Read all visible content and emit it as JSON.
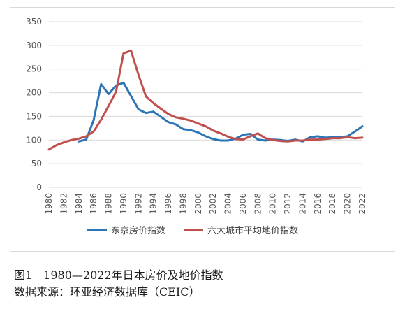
{
  "chart_data": {
    "type": "line",
    "title": "",
    "xlabel": "",
    "ylabel": "",
    "ylim": [
      0,
      350
    ],
    "yticks": [
      0,
      50,
      100,
      150,
      200,
      250,
      300,
      350
    ],
    "xlim": [
      1980,
      2022
    ],
    "xticks": [
      1980,
      1982,
      1984,
      1986,
      1988,
      1990,
      1992,
      1994,
      1996,
      1998,
      2000,
      2002,
      2004,
      2006,
      2008,
      2010,
      2012,
      2014,
      2016,
      2018,
      2020,
      2022
    ],
    "grid": "horizontal",
    "legend": "bottom",
    "series": [
      {
        "name": "东京房价指数",
        "color": "#2e75b6",
        "x": [
          1984,
          1985,
          1986,
          1987,
          1988,
          1989,
          1990,
          1991,
          1992,
          1993,
          1994,
          1995,
          1996,
          1997,
          1998,
          1999,
          2000,
          2001,
          2002,
          2003,
          2004,
          2005,
          2006,
          2007,
          2008,
          2009,
          2010,
          2011,
          2012,
          2013,
          2014,
          2015,
          2016,
          2017,
          2018,
          2019,
          2020,
          2021,
          2022
        ],
        "values": [
          97,
          101,
          142,
          218,
          197,
          215,
          221,
          193,
          165,
          157,
          160,
          149,
          138,
          133,
          123,
          121,
          116,
          108,
          102,
          99,
          99,
          103,
          111,
          113,
          101,
          99,
          101,
          100,
          98,
          101,
          97,
          106,
          108,
          105,
          106,
          106,
          108,
          118,
          129
        ]
      },
      {
        "name": "六大城市平均地价指数",
        "color": "#c0504d",
        "x": [
          1980,
          1981,
          1982,
          1983,
          1984,
          1985,
          1986,
          1987,
          1988,
          1989,
          1990,
          1991,
          1992,
          1993,
          1994,
          1995,
          1996,
          1997,
          1998,
          1999,
          2000,
          2001,
          2002,
          2003,
          2004,
          2005,
          2006,
          2007,
          2008,
          2009,
          2010,
          2011,
          2012,
          2013,
          2014,
          2015,
          2016,
          2017,
          2018,
          2019,
          2020,
          2021,
          2022
        ],
        "values": [
          80,
          89,
          95,
          100,
          103,
          108,
          118,
          143,
          172,
          202,
          283,
          289,
          238,
          192,
          178,
          166,
          155,
          148,
          145,
          141,
          135,
          129,
          120,
          114,
          107,
          102,
          101,
          108,
          114,
          104,
          100,
          98,
          97,
          99,
          99,
          101,
          101,
          102,
          104,
          104,
          106,
          104,
          105
        ]
      }
    ]
  },
  "caption": {
    "figure": "图1　1980—2022年日本房价及地价指数",
    "source": "数据来源：环亚经济数据库（CEIC）"
  }
}
